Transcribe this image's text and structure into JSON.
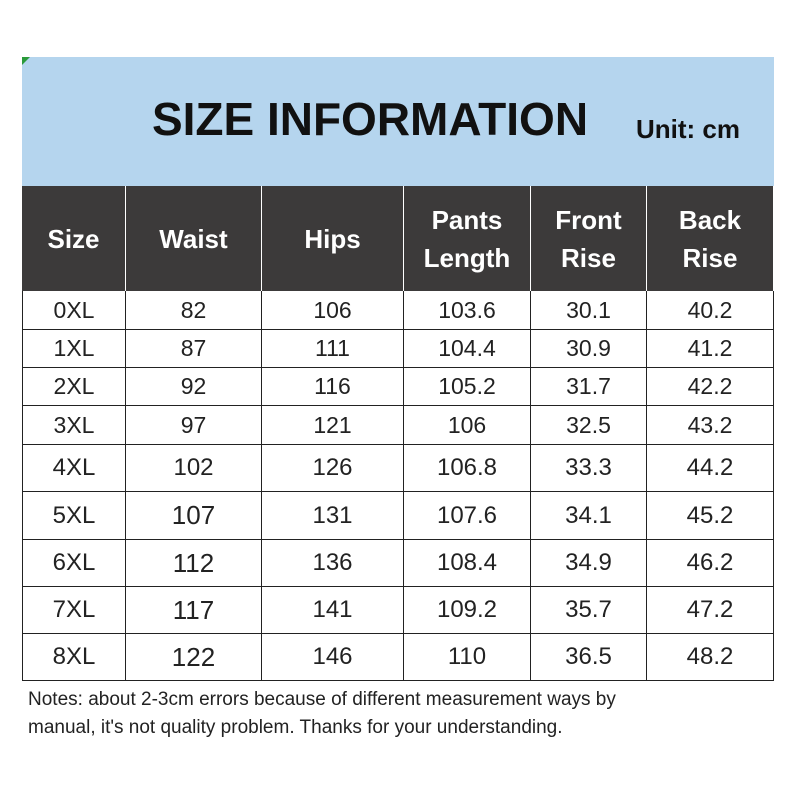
{
  "header": {
    "title": "SIZE INFORMATION",
    "unit": "Unit: cm"
  },
  "table": {
    "columns": [
      [
        "Size"
      ],
      [
        "Waist"
      ],
      [
        "Hips"
      ],
      [
        "Pants",
        "Length"
      ],
      [
        "Front",
        "Rise"
      ],
      [
        "Back",
        "Rise"
      ]
    ],
    "rows": [
      [
        "0XL",
        82,
        106,
        103.6,
        30.1,
        40.2
      ],
      [
        "1XL",
        87,
        111,
        104.4,
        30.9,
        41.2
      ],
      [
        "2XL",
        92,
        116,
        105.2,
        31.7,
        42.2
      ],
      [
        "3XL",
        97,
        121,
        106,
        32.5,
        43.2
      ],
      [
        "4XL",
        102,
        126,
        106.8,
        33.3,
        44.2
      ],
      [
        "5XL",
        107,
        131,
        107.6,
        34.1,
        45.2
      ],
      [
        "6XL",
        112,
        136,
        108.4,
        34.9,
        46.2
      ],
      [
        "7XL",
        117,
        141,
        109.2,
        35.7,
        47.2
      ],
      [
        "8XL",
        122,
        146,
        110,
        36.5,
        48.2
      ]
    ]
  },
  "notes": [
    "Notes: about 2-3cm errors because of different measurement ways by",
    "manual, it's not quality problem.  Thanks for your understanding."
  ]
}
